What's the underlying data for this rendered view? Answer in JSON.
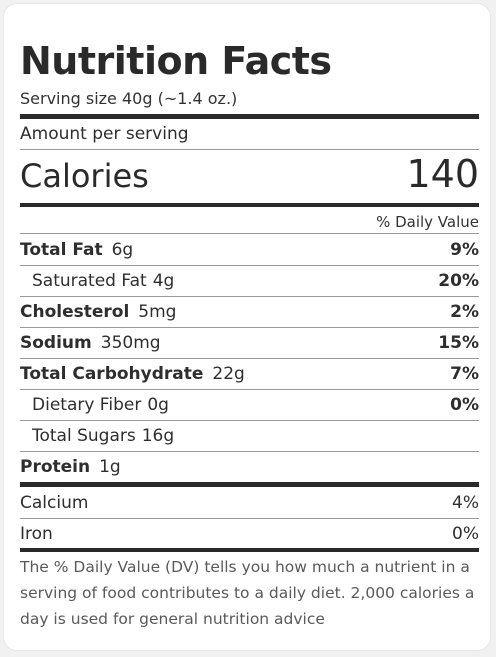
{
  "label": {
    "title": "Nutrition Facts",
    "serving_size": "Serving size 40g (~1.4 oz.)",
    "amount_per_serving": "Amount per serving",
    "calories_label": "Calories",
    "calories_value": "140",
    "daily_value_header": "% Daily Value"
  },
  "nutrients": [
    {
      "name": "Total Fat",
      "amount": "6g",
      "dv": "9%"
    },
    {
      "name": "Saturated Fat",
      "amount": "4g",
      "dv": "20%"
    },
    {
      "name": "Cholesterol",
      "amount": "5mg",
      "dv": "2%"
    },
    {
      "name": "Sodium",
      "amount": "350mg",
      "dv": "15%"
    },
    {
      "name": "Total Carbohydrate",
      "amount": "22g",
      "dv": "7%"
    },
    {
      "name": "Dietary Fiber",
      "amount": "0g",
      "dv": "0%"
    },
    {
      "name": "Total Sugars",
      "amount": "16g",
      "dv": ""
    },
    {
      "name": "Protein",
      "amount": "1g",
      "dv": ""
    }
  ],
  "minerals": [
    {
      "name": "Calcium",
      "dv": "4%"
    },
    {
      "name": "Iron",
      "dv": "0%"
    }
  ],
  "footnote": "The % Daily Value (DV) tells you how much a nutrient in a serving of food contributes to a daily diet. 2,000 calories a day is used for general nutrition advice"
}
